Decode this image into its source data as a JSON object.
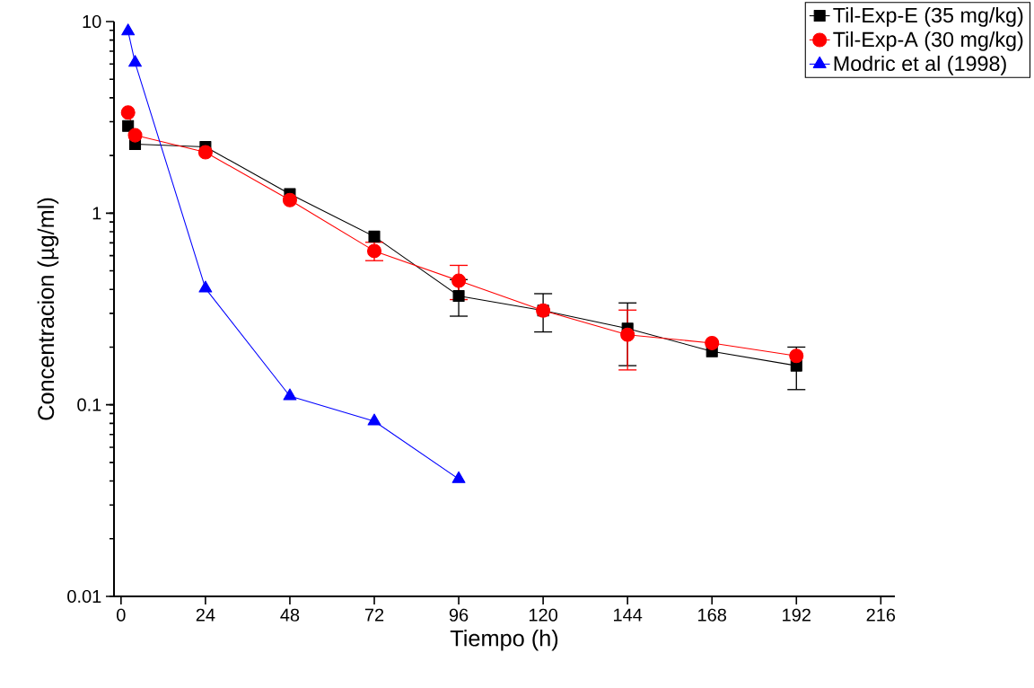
{
  "chart_data": {
    "type": "line",
    "xlabel": "Tiempo (h)",
    "ylabel": "Concentracion (µg/ml)",
    "log": "y",
    "xlim": [
      -2,
      220
    ],
    "ylim": [
      0.01,
      10
    ],
    "xticks": [
      0,
      24,
      48,
      72,
      96,
      120,
      144,
      168,
      192,
      216
    ],
    "yticks": [
      0.01,
      0.1,
      1,
      10
    ],
    "legend": "top right",
    "line_style": "solid",
    "series": [
      {
        "name": "Til-Exp-E (35 mg/kg)",
        "color": "#000000",
        "marker": "square",
        "x": [
          2,
          4,
          24,
          48,
          72,
          96,
          120,
          144,
          168,
          192
        ],
        "values": [
          2.85,
          2.29,
          2.22,
          1.26,
          0.755,
          0.37,
          0.31,
          0.25,
          0.19,
          0.16
        ],
        "errors": [
          null,
          null,
          null,
          null,
          null,
          0.08,
          0.07,
          0.09,
          null,
          0.04
        ]
      },
      {
        "name": "Til-Exp-A (30 mg/kg)",
        "color": "#ff0000",
        "marker": "circle",
        "x": [
          2,
          4,
          24,
          48,
          72,
          96,
          120,
          144,
          168,
          192
        ],
        "values": [
          3.35,
          2.55,
          2.08,
          1.17,
          0.635,
          0.444,
          0.31,
          0.232,
          0.21,
          0.18
        ],
        "errors": [
          null,
          null,
          null,
          null,
          0.07,
          0.09,
          null,
          0.08,
          null,
          null
        ]
      },
      {
        "name": "Modric et al (1998)",
        "color": "#0000ff",
        "marker": "triangle",
        "x": [
          2,
          4,
          24,
          48,
          72,
          96
        ],
        "values": [
          8.9,
          6.1,
          0.405,
          0.111,
          0.082,
          0.041
        ]
      }
    ]
  }
}
